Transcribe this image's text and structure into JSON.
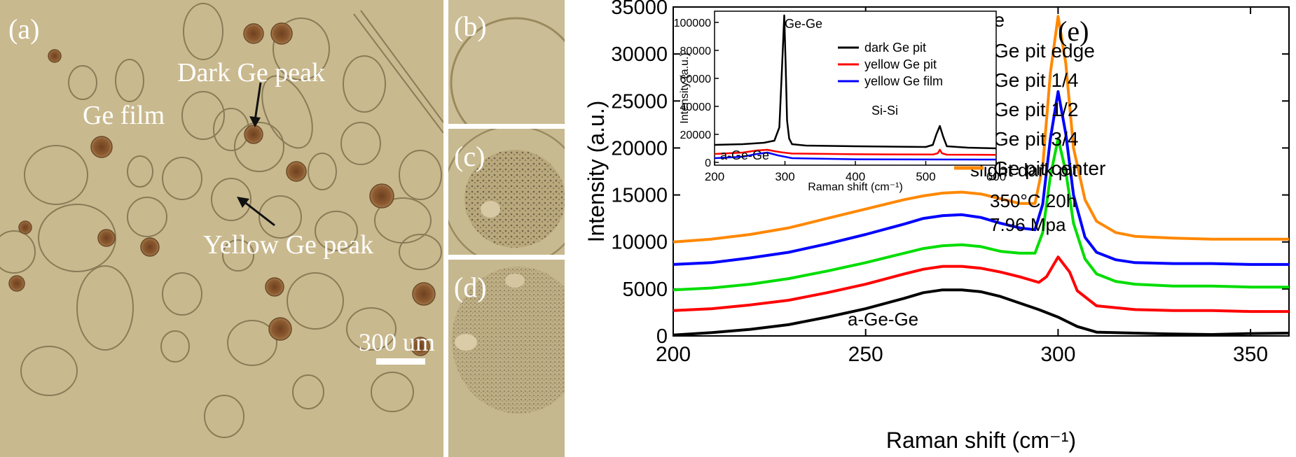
{
  "micrographs": {
    "panel_a": {
      "label": "(a)",
      "annotations": {
        "ge_film": "Ge film",
        "dark_ge_peak": "Dark Ge peak",
        "yellow_ge_peak": "Yellow Ge peak"
      },
      "scale_bar": "300 um"
    },
    "panel_b": {
      "label": "(b)"
    },
    "panel_c": {
      "label": "(c)"
    },
    "panel_d": {
      "label": "(d)"
    },
    "colors": {
      "background": "#c9b98e",
      "pit_outline": "#8a7b58",
      "dark_pit": "#8a5a2e",
      "annotation_text": "#ffffff"
    }
  },
  "chart_data": [
    {
      "type": "line",
      "panel_label": "(e)",
      "title": "",
      "xlabel": "Raman shift (cm⁻¹)",
      "ylabel": "Intensity (a.u.)",
      "xlim": [
        200,
        360
      ],
      "ylim": [
        0,
        35000
      ],
      "xticks": [
        200,
        250,
        300,
        350
      ],
      "yticks": [
        0,
        5000,
        10000,
        15000,
        20000,
        25000,
        30000,
        35000
      ],
      "legend_position": "top-right",
      "annotations": {
        "ge_ge": "Ge-Ge",
        "a_ge_ge": "a-Ge-Ge",
        "condition_1": "slight dark pit",
        "condition_2": "350°C 20h",
        "condition_3": "7.96 Mpa"
      },
      "series": [
        {
          "name": "Ge pit edge",
          "color": "#000000",
          "x": [
            200,
            210,
            220,
            230,
            240,
            250,
            260,
            265,
            270,
            275,
            280,
            285,
            290,
            295,
            300,
            305,
            310,
            320,
            330,
            340,
            350,
            360
          ],
          "y": [
            100,
            350,
            700,
            1200,
            2000,
            2900,
            4000,
            4600,
            4900,
            4900,
            4700,
            4200,
            3500,
            2800,
            2000,
            1000,
            400,
            300,
            200,
            150,
            250,
            300
          ]
        },
        {
          "name": "Ge pit 1/4",
          "color": "#ff0000",
          "x": [
            200,
            210,
            220,
            230,
            240,
            250,
            260,
            265,
            270,
            275,
            280,
            285,
            290,
            295,
            297,
            300,
            303,
            305,
            310,
            320,
            330,
            340,
            350,
            360
          ],
          "y": [
            2700,
            2900,
            3300,
            3800,
            4600,
            5500,
            6600,
            7100,
            7400,
            7400,
            7200,
            6800,
            6300,
            5700,
            6300,
            8400,
            6800,
            4800,
            3200,
            2800,
            2700,
            2700,
            2600,
            2600
          ]
        },
        {
          "name": "Ge pit 1/2",
          "color": "#00dd00",
          "x": [
            200,
            210,
            220,
            230,
            240,
            250,
            260,
            265,
            270,
            275,
            280,
            285,
            290,
            294,
            296,
            298,
            300,
            302,
            304,
            307,
            310,
            315,
            320,
            330,
            340,
            350,
            360
          ],
          "y": [
            4900,
            5100,
            5500,
            6100,
            6900,
            7800,
            8800,
            9300,
            9600,
            9700,
            9500,
            9000,
            8800,
            8800,
            11000,
            17000,
            21000,
            17500,
            12000,
            8200,
            6600,
            5800,
            5500,
            5300,
            5300,
            5200,
            5200
          ]
        },
        {
          "name": "Ge pit 3/4",
          "color": "#0000ff",
          "x": [
            200,
            210,
            220,
            230,
            240,
            250,
            260,
            265,
            270,
            275,
            280,
            285,
            290,
            294,
            296,
            298,
            300,
            302,
            304,
            307,
            310,
            315,
            320,
            330,
            340,
            350,
            360
          ],
          "y": [
            7600,
            7800,
            8300,
            8900,
            9800,
            10800,
            11900,
            12500,
            12800,
            12900,
            12600,
            12000,
            11500,
            11300,
            14000,
            21000,
            26000,
            21500,
            15000,
            10500,
            8900,
            8100,
            7800,
            7700,
            7700,
            7600,
            7600
          ]
        },
        {
          "name": "Ge pit center",
          "color": "#ff8800",
          "x": [
            200,
            210,
            220,
            230,
            240,
            250,
            260,
            265,
            270,
            275,
            280,
            285,
            290,
            294,
            296,
            298,
            300,
            302,
            304,
            307,
            310,
            315,
            320,
            330,
            340,
            350,
            360
          ],
          "y": [
            10000,
            10300,
            10800,
            11500,
            12500,
            13500,
            14500,
            14900,
            15200,
            15300,
            15100,
            14600,
            14100,
            14100,
            18000,
            28000,
            34000,
            29000,
            20000,
            14500,
            12200,
            11000,
            10600,
            10400,
            10300,
            10300,
            10300
          ]
        }
      ]
    },
    {
      "type": "line",
      "role": "inset",
      "title": "",
      "xlabel": "Raman shift (cm⁻¹)",
      "ylabel": "Intensity (a.u.)",
      "xlim": [
        200,
        600
      ],
      "ylim": [
        -2000,
        108000
      ],
      "xticks": [
        200,
        300,
        400,
        500,
        600
      ],
      "yticks": [
        0,
        20000,
        40000,
        60000,
        80000,
        100000
      ],
      "legend_position": "top-right",
      "annotations": {
        "ge_ge": "Ge-Ge",
        "si_si": "Si-Si",
        "a_ge_ge": "a-Ge-Ge"
      },
      "series": [
        {
          "name": "dark Ge pit",
          "color": "#000000",
          "x": [
            200,
            240,
            270,
            285,
            292,
            296,
            299,
            301,
            303,
            306,
            310,
            330,
            400,
            500,
            510,
            515,
            520,
            525,
            530,
            560,
            600
          ],
          "y": [
            12500,
            13000,
            14000,
            15500,
            25000,
            70000,
            105000,
            70000,
            30000,
            17000,
            13000,
            12000,
            11500,
            11000,
            12500,
            20000,
            26000,
            18000,
            11500,
            10500,
            10000
          ]
        },
        {
          "name": "yellow Ge pit",
          "color": "#ff0000",
          "x": [
            200,
            240,
            260,
            275,
            285,
            295,
            310,
            400,
            510,
            517,
            520,
            523,
            530,
            600
          ],
          "y": [
            6000,
            7000,
            8500,
            9000,
            8000,
            7200,
            6300,
            5800,
            5600,
            6500,
            9000,
            6500,
            5500,
            5400
          ]
        },
        {
          "name": "yellow Ge film",
          "color": "#0000ff",
          "x": [
            200,
            240,
            260,
            275,
            290,
            310,
            400,
            600
          ],
          "y": [
            3000,
            4000,
            6000,
            7000,
            5000,
            3000,
            2200,
            2000
          ]
        }
      ]
    }
  ]
}
